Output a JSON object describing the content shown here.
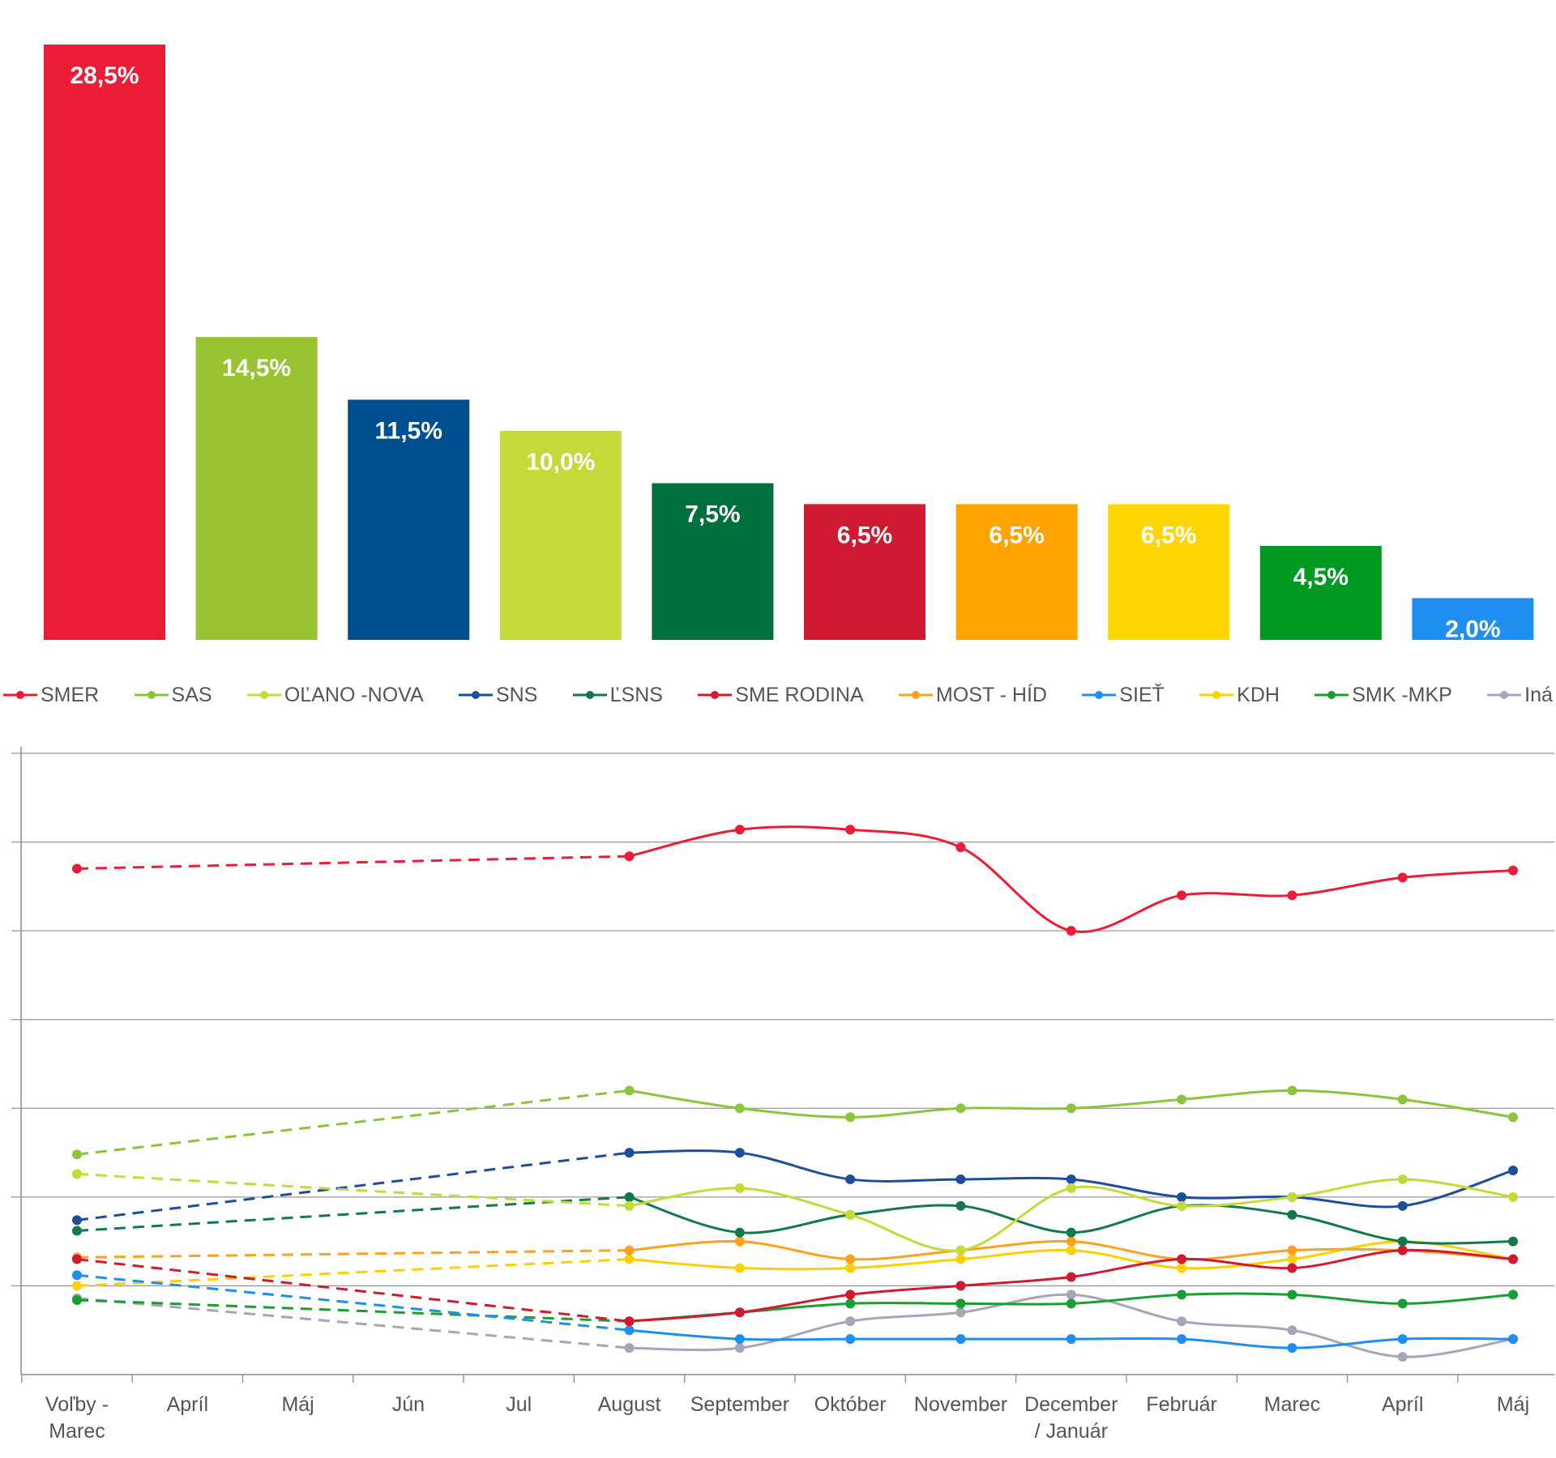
{
  "chart_data": [
    {
      "type": "bar",
      "categories": [
        "SMER",
        "SAS",
        "SNS",
        "OĽANO -NOVA",
        "ĽSNS",
        "SME RODINA",
        "MOST - HÍD",
        "KDH",
        "SMK -MKP",
        "SIEŤ"
      ],
      "values": [
        28.5,
        14.5,
        11.5,
        10.0,
        7.5,
        6.5,
        6.5,
        6.5,
        4.5,
        2.0
      ],
      "labels": [
        "28,5%",
        "14,5%",
        "11,5%",
        "10,0%",
        "7,5%",
        "6,5%",
        "6,5%",
        "6,5%",
        "4,5%",
        "2,0%"
      ],
      "colors": [
        "#ec1c37",
        "#99c432",
        "#004f90",
        "#c5d938",
        "#00703c",
        "#d01a32",
        "#ffa300",
        "#ffd503",
        "#009a22",
        "#1e8ef0"
      ],
      "ylim": [
        0,
        30
      ]
    },
    {
      "type": "line",
      "legend": [
        "SMER",
        "SAS",
        "OĽANO -NOVA",
        "SNS",
        "ĽSNS",
        "SME RODINA",
        "MOST - HÍD",
        "SIEŤ",
        "KDH",
        "SMK -MKP",
        "Iná"
      ],
      "x": [
        "Voľby - Marec",
        "Apríl",
        "Máj",
        "Jún",
        "Jul",
        "August",
        "September",
        "Október",
        "November",
        "December / Január",
        "Február",
        "Marec",
        "Apríl",
        "Máj"
      ],
      "ylim": [
        0,
        35
      ],
      "grid": true,
      "dashed_until_index": 5,
      "series": [
        {
          "name": "SMER",
          "color": "#ec1c37",
          "points": [
            [
              0,
              28.5
            ],
            [
              5,
              29.2
            ],
            [
              6,
              30.7
            ],
            [
              7,
              30.7
            ],
            [
              8,
              29.7
            ],
            [
              9,
              25.0
            ],
            [
              10,
              27.0
            ],
            [
              11,
              27.0
            ],
            [
              12,
              28.0
            ],
            [
              13,
              28.4
            ]
          ]
        },
        {
          "name": "SAS",
          "color": "#8cc43c",
          "points": [
            [
              0,
              12.4
            ],
            [
              5,
              16.0
            ],
            [
              6,
              15.0
            ],
            [
              7,
              14.5
            ],
            [
              8,
              15.0
            ],
            [
              9,
              15.0
            ],
            [
              10,
              15.5
            ],
            [
              11,
              16.0
            ],
            [
              12,
              15.5
            ],
            [
              13,
              14.5
            ]
          ]
        },
        {
          "name": "OĽANO -NOVA",
          "color": "#c5d938",
          "points": [
            [
              0,
              11.3
            ],
            [
              5,
              9.5
            ],
            [
              6,
              10.5
            ],
            [
              7,
              9.0
            ],
            [
              8,
              7.0
            ],
            [
              9,
              10.5
            ],
            [
              10,
              9.5
            ],
            [
              11,
              10.0
            ],
            [
              12,
              11.0
            ],
            [
              13,
              10.0
            ]
          ]
        },
        {
          "name": "SNS",
          "color": "#1d4e9c",
          "points": [
            [
              0,
              8.7
            ],
            [
              5,
              12.5
            ],
            [
              6,
              12.5
            ],
            [
              7,
              11.0
            ],
            [
              8,
              11.0
            ],
            [
              9,
              11.0
            ],
            [
              10,
              10.0
            ],
            [
              11,
              10.0
            ],
            [
              12,
              9.5
            ],
            [
              13,
              11.5
            ]
          ]
        },
        {
          "name": "ĽSNS",
          "color": "#12794e",
          "points": [
            [
              0,
              8.1
            ],
            [
              5,
              10.0
            ],
            [
              6,
              8.0
            ],
            [
              7,
              9.0
            ],
            [
              8,
              9.5
            ],
            [
              9,
              8.0
            ],
            [
              10,
              9.5
            ],
            [
              11,
              9.0
            ],
            [
              12,
              7.5
            ],
            [
              13,
              7.5
            ]
          ]
        },
        {
          "name": "SME RODINA",
          "color": "#d01a32",
          "points": [
            [
              0,
              6.5
            ],
            [
              5,
              3.0
            ],
            [
              6,
              3.5
            ],
            [
              7,
              4.5
            ],
            [
              8,
              5.0
            ],
            [
              9,
              5.5
            ],
            [
              10,
              6.5
            ],
            [
              11,
              6.0
            ],
            [
              12,
              7.0
            ],
            [
              13,
              6.5
            ]
          ]
        },
        {
          "name": "MOST - HÍD",
          "color": "#ffa01e",
          "points": [
            [
              0,
              6.6
            ],
            [
              5,
              7.0
            ],
            [
              6,
              7.5
            ],
            [
              7,
              6.5
            ],
            [
              8,
              7.0
            ],
            [
              9,
              7.5
            ],
            [
              10,
              6.5
            ],
            [
              11,
              7.0
            ],
            [
              12,
              7.0
            ],
            [
              13,
              6.5
            ]
          ]
        },
        {
          "name": "SIEŤ",
          "color": "#1e8ef0",
          "points": [
            [
              0,
              5.6
            ],
            [
              5,
              2.5
            ],
            [
              6,
              2.0
            ],
            [
              7,
              2.0
            ],
            [
              8,
              2.0
            ],
            [
              9,
              2.0
            ],
            [
              10,
              2.0
            ],
            [
              11,
              1.5
            ],
            [
              12,
              2.0
            ],
            [
              13,
              2.0
            ]
          ]
        },
        {
          "name": "KDH",
          "color": "#ffd000",
          "points": [
            [
              0,
              5.0
            ],
            [
              5,
              6.5
            ],
            [
              6,
              6.0
            ],
            [
              7,
              6.0
            ],
            [
              8,
              6.5
            ],
            [
              9,
              7.0
            ],
            [
              10,
              6.0
            ],
            [
              11,
              6.5
            ],
            [
              12,
              7.5
            ],
            [
              13,
              6.5
            ]
          ]
        },
        {
          "name": "SMK -MKP",
          "color": "#1a9e32",
          "points": [
            [
              0,
              4.2
            ],
            [
              5,
              3.0
            ],
            [
              6,
              3.5
            ],
            [
              7,
              4.0
            ],
            [
              8,
              4.0
            ],
            [
              9,
              4.0
            ],
            [
              10,
              4.5
            ],
            [
              11,
              4.5
            ],
            [
              12,
              4.0
            ],
            [
              13,
              4.5
            ]
          ]
        },
        {
          "name": "Iná",
          "color": "#a9a4b8",
          "points": [
            [
              0,
              4.3
            ],
            [
              5,
              1.5
            ],
            [
              6,
              1.5
            ],
            [
              7,
              3.0
            ],
            [
              8,
              3.5
            ],
            [
              9,
              4.5
            ],
            [
              10,
              3.0
            ],
            [
              11,
              2.5
            ],
            [
              12,
              1.0
            ],
            [
              13,
              2.0
            ]
          ]
        }
      ]
    }
  ]
}
